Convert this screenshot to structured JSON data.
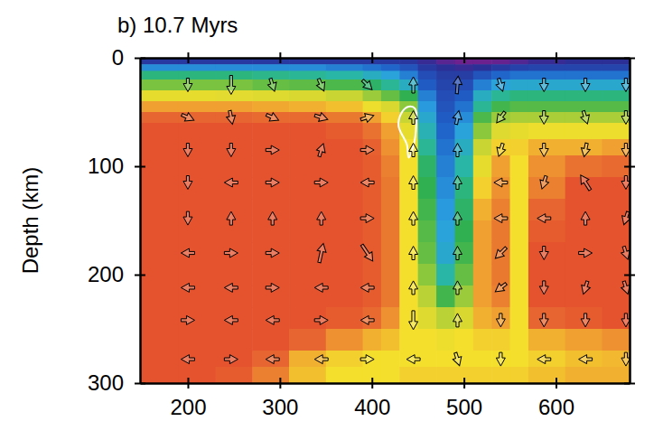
{
  "chart_data": {
    "type": "heatmap",
    "title": "b) 10.7 Myrs",
    "y_label": "Depth (km)",
    "xlim": [
      148,
      680
    ],
    "ylim": [
      0,
      300
    ],
    "xticks": [
      200,
      300,
      400,
      500,
      600
    ],
    "yticks": [
      0,
      100,
      200,
      300
    ],
    "zlim": [
      0,
      1
    ],
    "x_edges": [
      148,
      190,
      230,
      270,
      310,
      350,
      390,
      410,
      430,
      450,
      470,
      490,
      510,
      530,
      550,
      570,
      610,
      650,
      680
    ],
    "depth_edges": [
      0,
      6,
      12,
      20,
      30,
      40,
      50,
      60,
      75,
      90,
      110,
      130,
      150,
      170,
      190,
      210,
      230,
      250,
      270,
      285,
      300
    ],
    "cells": [
      [
        0.15,
        0.15,
        0.15,
        0.15,
        0.15,
        0.15,
        0.15,
        0.15,
        0.14,
        0.1,
        0.05,
        0.02,
        0.02,
        0.03,
        0.06,
        0.1,
        0.12,
        0.12
      ],
      [
        0.32,
        0.32,
        0.32,
        0.32,
        0.32,
        0.3,
        0.28,
        0.26,
        0.22,
        0.15,
        0.12,
        0.1,
        0.12,
        0.15,
        0.17,
        0.18,
        0.18,
        0.18
      ],
      [
        0.48,
        0.48,
        0.48,
        0.47,
        0.46,
        0.44,
        0.4,
        0.36,
        0.3,
        0.2,
        0.16,
        0.16,
        0.22,
        0.26,
        0.28,
        0.28,
        0.28,
        0.28
      ],
      [
        0.6,
        0.6,
        0.6,
        0.58,
        0.57,
        0.55,
        0.5,
        0.46,
        0.4,
        0.24,
        0.18,
        0.2,
        0.3,
        0.36,
        0.38,
        0.38,
        0.38,
        0.38
      ],
      [
        0.76,
        0.76,
        0.75,
        0.74,
        0.72,
        0.7,
        0.64,
        0.58,
        0.52,
        0.3,
        0.2,
        0.24,
        0.4,
        0.46,
        0.48,
        0.48,
        0.48,
        0.48
      ],
      [
        0.88,
        0.88,
        0.88,
        0.87,
        0.86,
        0.84,
        0.78,
        0.72,
        0.62,
        0.34,
        0.22,
        0.28,
        0.46,
        0.54,
        0.56,
        0.56,
        0.56,
        0.56
      ],
      [
        0.96,
        0.96,
        0.96,
        0.95,
        0.95,
        0.93,
        0.88,
        0.82,
        0.7,
        0.38,
        0.24,
        0.32,
        0.55,
        0.64,
        0.66,
        0.66,
        0.66,
        0.66
      ],
      [
        1,
        1,
        1,
        1,
        1,
        0.98,
        0.94,
        0.88,
        0.76,
        0.42,
        0.26,
        0.36,
        0.62,
        0.74,
        0.76,
        0.78,
        0.78,
        0.78
      ],
      [
        1,
        1,
        1,
        1,
        1,
        1,
        0.97,
        0.9,
        0.8,
        0.46,
        0.28,
        0.4,
        0.7,
        0.82,
        0.82,
        0.86,
        0.86,
        0.88
      ],
      [
        1,
        1,
        1,
        1,
        1,
        1,
        0.98,
        0.92,
        0.8,
        0.5,
        0.3,
        0.44,
        0.76,
        0.88,
        0.8,
        0.9,
        0.94,
        0.95
      ],
      [
        1,
        1,
        1,
        1,
        1,
        1,
        0.98,
        0.93,
        0.8,
        0.52,
        0.32,
        0.48,
        0.82,
        0.9,
        0.8,
        0.92,
        1,
        1
      ],
      [
        1,
        1,
        1,
        1,
        1,
        1,
        0.98,
        0.93,
        0.8,
        0.54,
        0.34,
        0.5,
        0.86,
        0.92,
        0.8,
        0.96,
        1,
        1
      ],
      [
        1,
        1,
        1,
        1,
        1,
        1,
        0.98,
        0.93,
        0.8,
        0.56,
        0.36,
        0.52,
        0.88,
        0.93,
        0.8,
        0.98,
        1,
        1
      ],
      [
        1,
        1,
        1,
        1,
        1,
        1,
        0.98,
        0.93,
        0.8,
        0.58,
        0.38,
        0.54,
        0.88,
        0.93,
        0.8,
        1,
        1,
        1
      ],
      [
        1,
        1,
        1,
        1,
        1,
        1,
        0.98,
        0.93,
        0.8,
        0.62,
        0.44,
        0.58,
        0.88,
        0.93,
        0.8,
        1,
        1,
        1
      ],
      [
        1,
        1,
        1,
        1,
        1,
        1,
        0.98,
        0.93,
        0.8,
        0.68,
        0.54,
        0.64,
        0.88,
        0.92,
        0.8,
        1,
        1,
        1
      ],
      [
        1,
        1,
        1,
        1,
        1,
        0.98,
        0.95,
        0.9,
        0.8,
        0.74,
        0.68,
        0.72,
        0.86,
        0.88,
        0.8,
        0.96,
        0.98,
        1
      ],
      [
        1,
        1,
        1,
        1,
        0.96,
        0.9,
        0.86,
        0.84,
        0.8,
        0.8,
        0.78,
        0.8,
        0.82,
        0.82,
        0.8,
        0.86,
        0.88,
        0.9
      ],
      [
        1,
        1,
        1,
        0.96,
        0.86,
        0.82,
        0.8,
        0.8,
        0.8,
        0.8,
        0.8,
        0.8,
        0.8,
        0.8,
        0.8,
        0.82,
        0.84,
        0.85
      ],
      [
        1,
        1,
        0.98,
        0.92,
        0.84,
        0.8,
        0.8,
        0.8,
        0.82,
        0.82,
        0.82,
        0.82,
        0.82,
        0.82,
        0.82,
        0.84,
        0.86,
        0.86
      ]
    ],
    "arrows": {
      "x": [
        200,
        247,
        292,
        345,
        395,
        445,
        493,
        540,
        587,
        632,
        676
      ],
      "depth": [
        25,
        55,
        85,
        115,
        148,
        180,
        212,
        242,
        278
      ],
      "u": [
        [
          0,
          0,
          0.3,
          0.4,
          0.7,
          0,
          0.1,
          0.3,
          0,
          0,
          0
        ],
        [
          0.9,
          0.2,
          0.9,
          0.95,
          0.95,
          0,
          0.2,
          -0.6,
          0,
          0.3,
          0
        ],
        [
          0,
          0,
          1,
          0.3,
          1,
          0,
          0,
          -0.3,
          0,
          -0.2,
          0
        ],
        [
          0,
          -1,
          1,
          1,
          -1,
          0,
          0,
          -1,
          -0.3,
          -0.7,
          0
        ],
        [
          0,
          0,
          0,
          0,
          1,
          0,
          0,
          -1,
          -1,
          0,
          -0.3
        ],
        [
          -1,
          1,
          1,
          0.3,
          0.8,
          0,
          0,
          -0.8,
          0,
          1,
          0.3
        ],
        [
          -1,
          -1,
          1,
          -1,
          -1,
          0,
          0,
          -0.8,
          0,
          -0.3,
          0.3
        ],
        [
          1,
          -1,
          -1,
          1,
          -1,
          0,
          0,
          0,
          0,
          0,
          0
        ],
        [
          -1,
          1,
          -1,
          -1,
          1,
          -1,
          0.3,
          0,
          -1,
          -1,
          0
        ]
      ],
      "v": [
        [
          1,
          1.4,
          0.95,
          0.9,
          0.7,
          -1.2,
          -1.3,
          0.95,
          1,
          1,
          1
        ],
        [
          0.4,
          1,
          0.4,
          0.3,
          -0.3,
          -1,
          -1,
          0.8,
          1,
          0.95,
          1
        ],
        [
          1,
          1,
          0,
          -0.95,
          0,
          -1,
          -1,
          0.95,
          1,
          1,
          1
        ],
        [
          1,
          0,
          0,
          0,
          0,
          -1,
          -1,
          0,
          0.95,
          -1.1,
          1
        ],
        [
          1,
          -1,
          -1,
          -1,
          0,
          -1,
          -1,
          0,
          0,
          -1,
          0.95
        ],
        [
          0,
          0,
          0,
          -1.4,
          1.2,
          -1,
          -1,
          0.8,
          1,
          0,
          0.95
        ],
        [
          0,
          0,
          0,
          0,
          0,
          -1,
          -1,
          0.6,
          1,
          0.95,
          0.95
        ],
        [
          0,
          0,
          0,
          0,
          0,
          1.4,
          -1,
          1,
          1,
          1,
          1
        ],
        [
          0,
          0,
          0,
          0,
          0,
          0,
          0.95,
          1,
          0,
          0,
          1
        ]
      ]
    },
    "outline": {
      "x": [
        440,
        447,
        448,
        446,
        440,
        438,
        429,
        432
      ],
      "depth": [
        45,
        47,
        63,
        78,
        92,
        80,
        63,
        51
      ]
    }
  }
}
